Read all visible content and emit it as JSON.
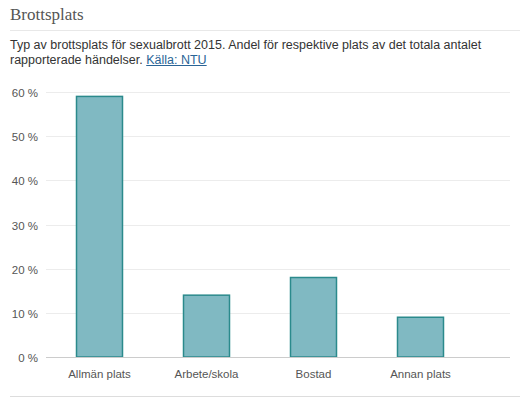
{
  "chart_data": {
    "type": "bar",
    "title": "Brottsplats",
    "subtitle": "Typ av brottsplats för sexualbrott 2015. Andel för respektive plats av det totala antalet rapporterade händelser.",
    "source": "Källa: NTU",
    "categories": [
      "Allmän plats",
      "Arbete/skola",
      "Bostad",
      "Annan plats"
    ],
    "values": [
      59,
      14,
      18,
      9
    ],
    "color": "#80b9c2",
    "ylim": [
      0,
      60
    ],
    "yticks": [
      {
        "value": 0,
        "label": "0 %"
      },
      {
        "value": 10,
        "label": "10 %"
      },
      {
        "value": 20,
        "label": "20 %"
      },
      {
        "value": 30,
        "label": "30 %"
      },
      {
        "value": 40,
        "label": "40 %"
      },
      {
        "value": 50,
        "label": "50 %"
      },
      {
        "value": 60,
        "label": "60 %"
      }
    ],
    "grid": true
  }
}
